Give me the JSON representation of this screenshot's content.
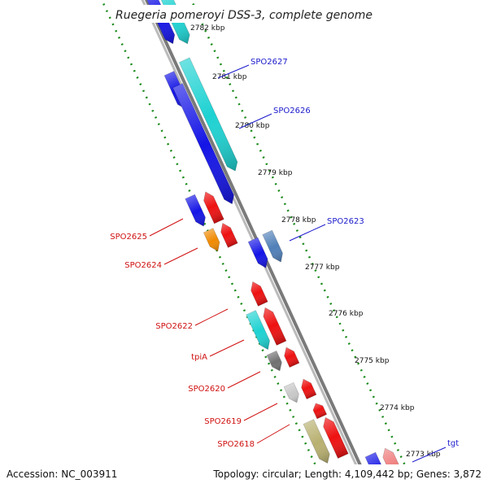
{
  "title": "Ruegeria pomeroyi DSS-3, complete genome",
  "footer": {
    "accession": "Accession: NC_003911",
    "topology": "Topology: circular; Length: 4,109,442 bp; Genes: 3,872"
  },
  "scale_ticks": [
    "2782 kbp",
    "2781 kbp",
    "2780 kbp",
    "2779 kbp",
    "2778 kbp",
    "2777 kbp",
    "2776 kbp",
    "2775 kbp",
    "2774 kbp",
    "2773 kbp"
  ],
  "gene_labels_forward": [
    "SPO2627",
    "SPO2626",
    "SPO2623",
    "tgt"
  ],
  "gene_labels_reverse": [
    "SPO2625",
    "SPO2624",
    "SPO2622",
    "tpiA",
    "SPO2620",
    "SPO2619",
    "SPO2618"
  ],
  "colors": {
    "forward_label": "#1a1acc",
    "reverse_label": "#d01010",
    "backbone": "#8a8a8a",
    "dots": "#1a8a1a",
    "blue": "#1414e6",
    "cyan": "#1ed2d2",
    "red": "#ee1111",
    "orange": "#f08a00",
    "steelblue": "#4f7fb8",
    "gray": "#707070",
    "lightgray": "#c8c8c8",
    "olive": "#b8b070",
    "pink": "#f08080"
  }
}
